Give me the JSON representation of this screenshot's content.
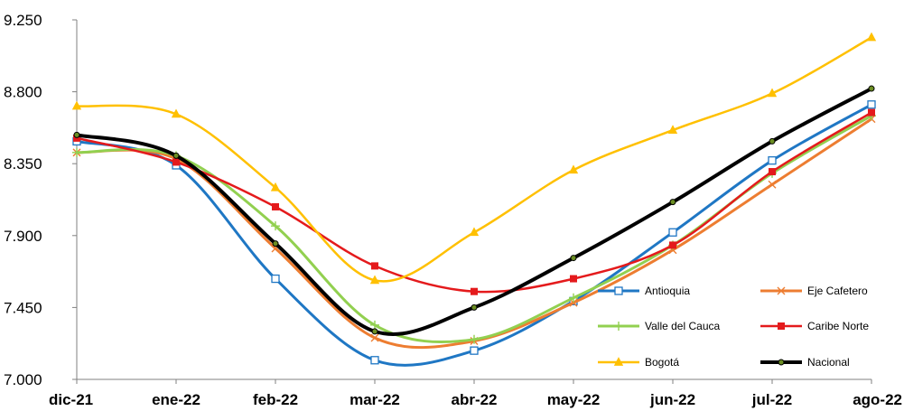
{
  "chart_data": {
    "type": "line",
    "categories": [
      "dic-21",
      "ene-22",
      "feb-22",
      "mar-22",
      "abr-22",
      "may-22",
      "jun-22",
      "jul-22",
      "ago-22"
    ],
    "y_ticks": [
      "7.000",
      "7.450",
      "7.900",
      "8.350",
      "8.800",
      "9.250"
    ],
    "ylim": [
      7000,
      9250
    ],
    "grid": false,
    "legend_position": "bottom-right-inside",
    "series": [
      {
        "name": "Antioquia",
        "color": "#1F77C4",
        "marker": "square-open",
        "width": 3,
        "values": [
          8490,
          8340,
          7630,
          7120,
          7180,
          7490,
          7920,
          8370,
          8720
        ]
      },
      {
        "name": "Eje Cafetero",
        "color": "#ED7D31",
        "marker": "x",
        "width": 3,
        "values": [
          8420,
          8380,
          7820,
          7260,
          7240,
          7480,
          7810,
          8220,
          8630
        ]
      },
      {
        "name": "Valle del Cauca",
        "color": "#92D050",
        "marker": "plus",
        "width": 3,
        "values": [
          8420,
          8400,
          7960,
          7340,
          7250,
          7510,
          7840,
          8290,
          8650
        ]
      },
      {
        "name": "Caribe Norte",
        "color": "#E41A1C",
        "marker": "square",
        "width": 2.5,
        "values": [
          8510,
          8360,
          8080,
          7710,
          7550,
          7630,
          7840,
          8300,
          8670
        ]
      },
      {
        "name": "Bogotá",
        "color": "#FFC000",
        "marker": "triangle",
        "width": 2.5,
        "values": [
          8710,
          8660,
          8200,
          7620,
          7920,
          8310,
          8560,
          8790,
          9140
        ]
      },
      {
        "name": "Nacional",
        "color": "#000000",
        "marker": "circle",
        "width": 4,
        "values": [
          8530,
          8400,
          7850,
          7300,
          7450,
          7760,
          8110,
          8490,
          8820
        ]
      }
    ]
  }
}
